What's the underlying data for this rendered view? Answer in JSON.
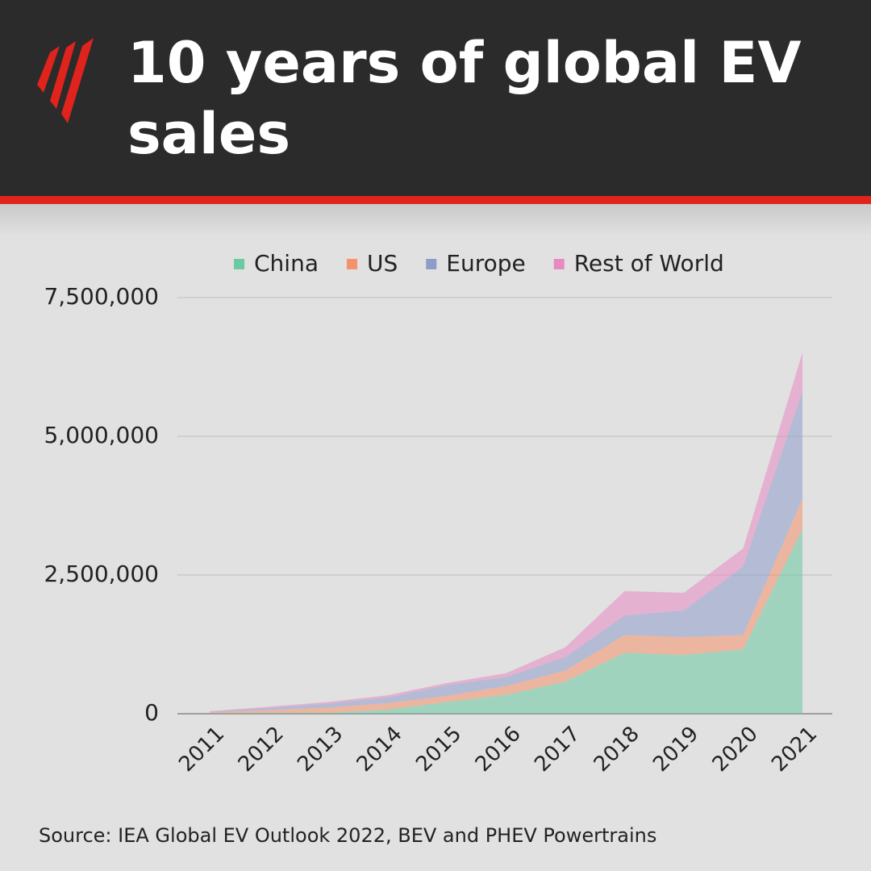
{
  "chart_data": {
    "type": "stacked-area",
    "title": "10 years of global EV sales",
    "source": "Source: IEA Global EV Outlook 2022, BEV and PHEV Powertrains",
    "categories": [
      "2011",
      "2012",
      "2013",
      "2014",
      "2015",
      "2016",
      "2017",
      "2018",
      "2019",
      "2020",
      "2021"
    ],
    "series": [
      {
        "name": "China",
        "color": "#6cc9a1",
        "values": [
          5000,
          15000,
          15000,
          75000,
          210000,
          340000,
          580000,
          1100000,
          1060000,
          1160000,
          3330000
        ]
      },
      {
        "name": "US",
        "color": "#f4916b",
        "values": [
          18000,
          53000,
          97000,
          118000,
          114000,
          160000,
          200000,
          320000,
          320000,
          260000,
          550000
        ]
      },
      {
        "name": "Europe",
        "color": "#8e9ccc",
        "values": [
          12000,
          40000,
          70000,
          100000,
          190000,
          160000,
          240000,
          350000,
          480000,
          1230000,
          1930000
        ]
      },
      {
        "name": "Rest of World",
        "color": "#e78ac3",
        "values": [
          10000,
          20000,
          30000,
          40000,
          40000,
          70000,
          180000,
          440000,
          320000,
          330000,
          700000
        ]
      }
    ],
    "ylim": [
      0,
      7500000
    ],
    "yticks": [
      0,
      {
        "value": 2500000,
        "label": "2,500,000"
      },
      {
        "value": 5000000,
        "label": "5,000,000"
      },
      {
        "value": 7500000,
        "label": "7,500,000"
      }
    ],
    "grid": true,
    "legend": "top"
  }
}
